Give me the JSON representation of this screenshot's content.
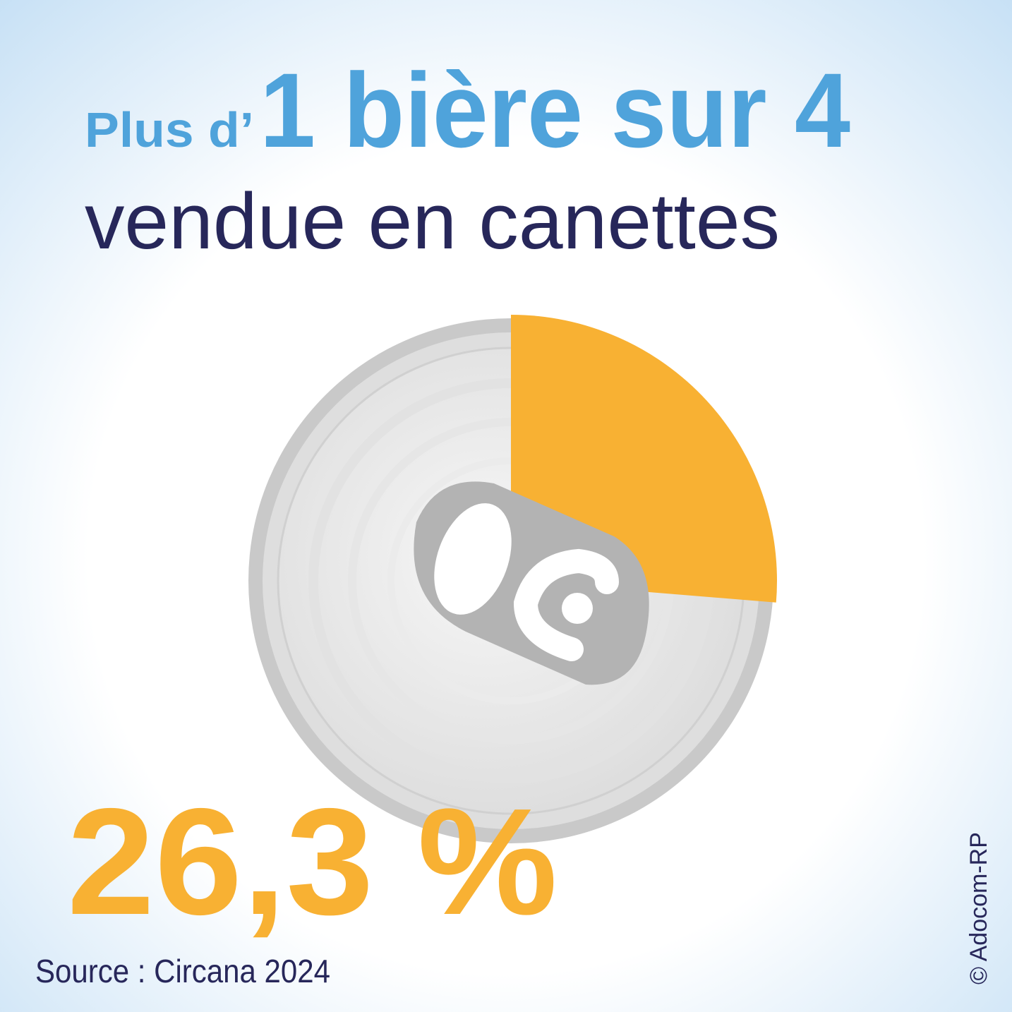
{
  "chart_data": {
    "type": "pie",
    "title_lead": "Plus d’",
    "title": "1 bière sur 4",
    "subtitle": "vendue en canettes",
    "values": [
      26.3
    ],
    "value_labels": [
      "26,3 %"
    ],
    "color": "#f8b133",
    "source": "Source : Circana 2024",
    "credit": "© Adocom-RP"
  }
}
